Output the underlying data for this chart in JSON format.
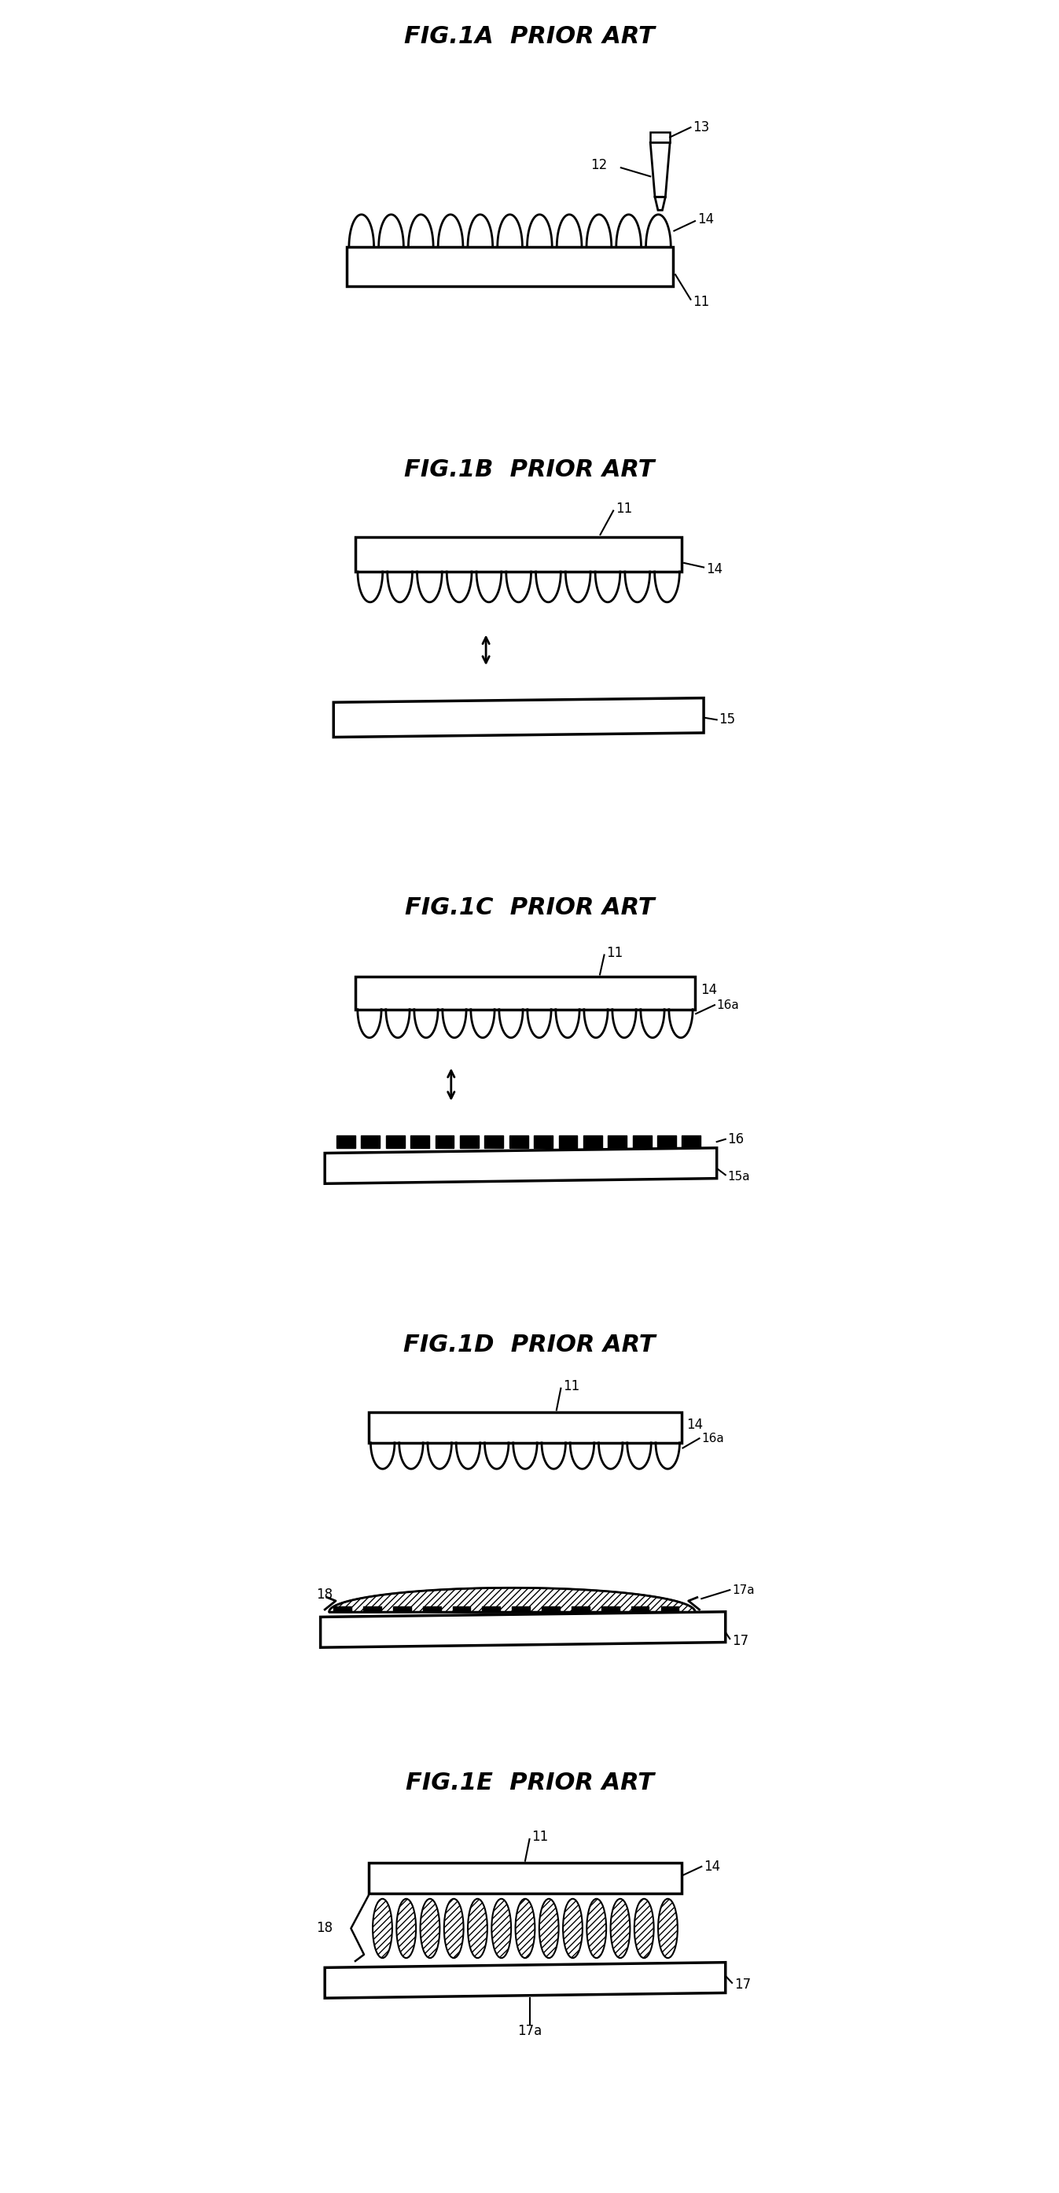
{
  "bg_color": "#ffffff",
  "line_color": "#000000",
  "fig_titles": [
    "FIG.1A  PRIOR ART",
    "FIG.1B  PRIOR ART",
    "FIG.1C  PRIOR ART",
    "FIG.1D  PRIOR ART",
    "FIG.1E  PRIOR ART"
  ]
}
